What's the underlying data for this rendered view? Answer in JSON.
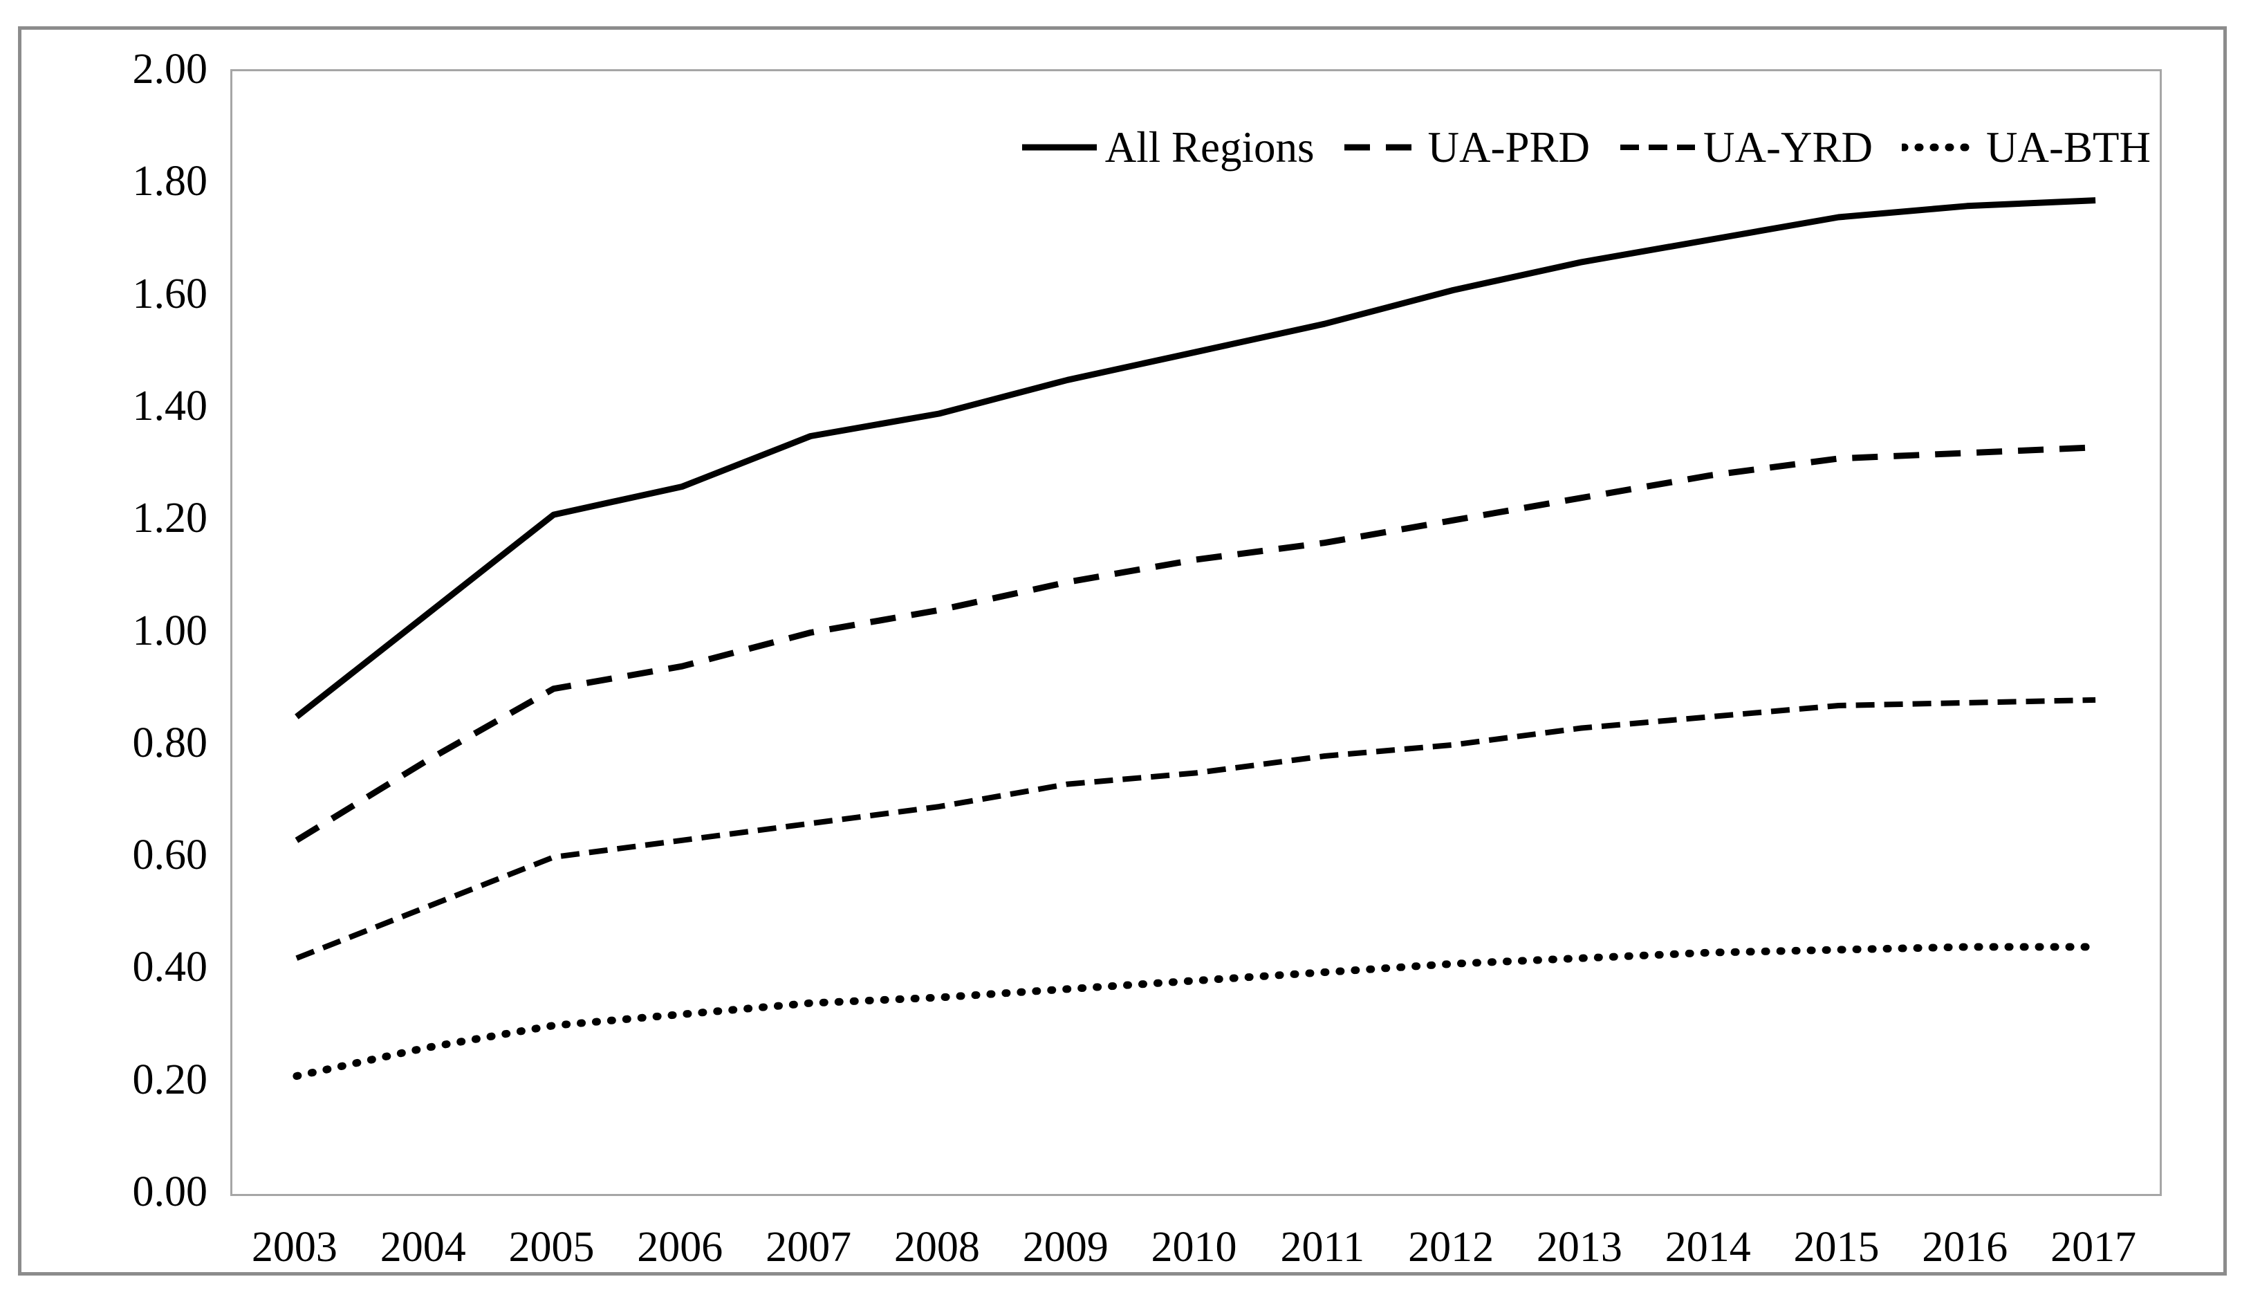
{
  "figure": {
    "outer_border_color": "#8c8c8c",
    "plot_border_color": "#a6a6a6",
    "background_color": "#ffffff",
    "line_color": "#000000"
  },
  "chart_data": {
    "type": "line",
    "title": "",
    "xlabel": "",
    "ylabel": "",
    "categories": [
      "2003",
      "2004",
      "2005",
      "2006",
      "2007",
      "2008",
      "2009",
      "2010",
      "2011",
      "2012",
      "2013",
      "2014",
      "2015",
      "2016",
      "2017"
    ],
    "ylim": [
      0.0,
      2.0
    ],
    "ytick_step": 0.2,
    "ytick_labels": [
      "0.00",
      "0.20",
      "0.40",
      "0.60",
      "0.80",
      "1.00",
      "1.20",
      "1.40",
      "1.60",
      "1.80",
      "2.00"
    ],
    "grid": false,
    "legend_position": "top-right-inside",
    "series": [
      {
        "name": "All Regions",
        "line_style": "solid",
        "color": "#000000",
        "values": [
          0.85,
          1.03,
          1.21,
          1.26,
          1.35,
          1.39,
          1.45,
          1.5,
          1.55,
          1.61,
          1.66,
          1.7,
          1.74,
          1.76,
          1.77
        ]
      },
      {
        "name": "UA-PRD",
        "line_style": "long-dash",
        "color": "#000000",
        "values": [
          0.63,
          0.77,
          0.9,
          0.94,
          1.0,
          1.04,
          1.09,
          1.13,
          1.16,
          1.2,
          1.24,
          1.28,
          1.31,
          1.32,
          1.33
        ]
      },
      {
        "name": "UA-YRD",
        "line_style": "short-dash",
        "color": "#000000",
        "values": [
          0.42,
          0.51,
          0.6,
          0.63,
          0.66,
          0.69,
          0.73,
          0.75,
          0.78,
          0.8,
          0.83,
          0.85,
          0.87,
          0.875,
          0.88
        ]
      },
      {
        "name": "UA-BTH",
        "line_style": "dotted",
        "color": "#000000",
        "values": [
          0.21,
          0.26,
          0.3,
          0.32,
          0.34,
          0.35,
          0.365,
          0.38,
          0.395,
          0.41,
          0.42,
          0.43,
          0.435,
          0.44,
          0.44
        ]
      }
    ]
  }
}
